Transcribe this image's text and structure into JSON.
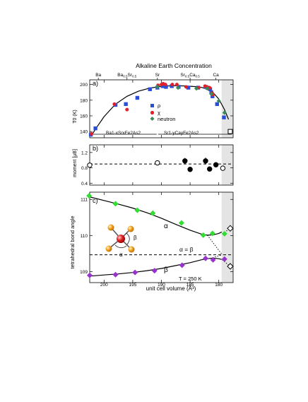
{
  "figure": {
    "title": "Alkaline Earth Concentration",
    "top_labels": [
      "Ba",
      "Ba0.5Sr0.5",
      "Sr",
      "Sr0.5Ca0.5",
      "Ca"
    ],
    "top_label_x": [
      201,
      196,
      190.7,
      185,
      180.5
    ],
    "x_axis": {
      "label": "unit cell volume (Å³)",
      "reversed": true,
      "lim": [
        202.5,
        177.5
      ],
      "ticks": [
        200,
        195,
        190,
        185,
        180
      ]
    },
    "shaded_region": [
      179.5,
      177.5
    ],
    "colors": {
      "rho": "#2a4fd6",
      "chi": "#e0202a",
      "neutron": "#3a8a5a",
      "alpha": "#33dd33",
      "beta": "#9932cc",
      "moment": "#000000"
    }
  },
  "chart_data": [
    {
      "panel": "a)",
      "type": "scatter",
      "ylabel": "T0 (K)",
      "ylim": [
        132,
        206
      ],
      "yticks": [
        140,
        160,
        180,
        200
      ],
      "region_labels": [
        "Ba1-xSrxFe2As2",
        "Sr1-yCayFe2As2"
      ],
      "legend": {
        "position": "center",
        "entries": [
          "ρ",
          "χ",
          "neutron"
        ]
      },
      "series": [
        {
          "name": "ρ",
          "marker": "square",
          "x": [
            202.3,
            201.5,
            198.0,
            196.2,
            194.2,
            192.0,
            190.7,
            189.8,
            189.5,
            189.2,
            188.2,
            187.0,
            185.3,
            183.6,
            182.3,
            182.0,
            181.5,
            181.3,
            181.1,
            180.3,
            179.1
          ],
          "y": [
            136,
            144,
            174,
            175,
            183,
            194,
            196,
            198,
            198,
            197,
            198,
            197,
            196,
            196,
            197,
            196,
            194,
            190,
            185,
            175,
            158
          ]
        },
        {
          "name": "χ",
          "marker": "circle",
          "x": [
            202.2,
            198.2,
            196.0,
            190.6,
            190.0,
            189.7,
            189.3,
            188.1,
            187.3,
            185.7,
            183.5,
            182.4,
            182.1,
            181.6,
            181.2,
            181.0
          ],
          "y": [
            137,
            175,
            168,
            199,
            200,
            201,
            200,
            200,
            200,
            197,
            196,
            198,
            197,
            196,
            189,
            187
          ]
        },
        {
          "name": "neutron",
          "marker": "diamond",
          "x": [
            190.7,
            187.1,
            183.9,
            182.0,
            181.3,
            180.0,
            179.0
          ],
          "y": [
            197,
            196,
            195,
            195,
            188,
            179,
            164
          ]
        }
      ],
      "fit": {
        "x": [
          202.3,
          201.5,
          200,
          198,
          196,
          194,
          192,
          190,
          188,
          186,
          184,
          183,
          182,
          181,
          180,
          179,
          178.3
        ],
        "y": [
          133.5,
          143,
          159,
          175,
          185,
          191.5,
          195.5,
          197.8,
          198.5,
          198.2,
          197.3,
          196.3,
          194.3,
          189.8,
          181.5,
          168,
          155.5
        ]
      },
      "open_markers": [
        {
          "x": 178.0,
          "y": 140,
          "marker": "square"
        }
      ]
    },
    {
      "panel": "b)",
      "type": "scatter",
      "ylabel": "moment [μB]",
      "ylim": [
        0.35,
        1.4
      ],
      "yticks": [
        0.4,
        0.8,
        1.2
      ],
      "reference_line": 0.9,
      "series": [
        {
          "name": "",
          "marker": "circle",
          "filled": true,
          "x": [
            185.9,
            185.0,
            182.3,
            181.6,
            180.5
          ],
          "y": [
            0.98,
            0.76,
            0.98,
            0.77,
            0.88
          ],
          "yerr": [
            0.08,
            0.06,
            0.09,
            0.06,
            0.05
          ]
        },
        {
          "name": "",
          "marker": "circle",
          "filled": false,
          "x": [
            202.5,
            190.7,
            179.3
          ],
          "y": [
            0.87,
            0.93,
            0.79
          ]
        }
      ]
    },
    {
      "panel": "c)",
      "type": "scatter",
      "ylabel": "tetrahedral bond angle",
      "ylim": [
        108.7,
        111.2
      ],
      "yticks": [
        109,
        110,
        111
      ],
      "reference_line": 109.47,
      "annotations": [
        "α",
        "β",
        "α = β",
        "T = 250 K"
      ],
      "series": [
        {
          "name": "α",
          "marker": "diamond",
          "x": [
            202.6,
            198.0,
            194.2,
            191.5,
            186.5,
            182.7,
            181.1,
            179.0
          ],
          "y": [
            111.1,
            110.88,
            110.7,
            110.62,
            110.35,
            110.01,
            110.06,
            110.05
          ]
        },
        {
          "name": "β",
          "marker": "diamond",
          "x": [
            202.5,
            198.0,
            194.6,
            191.2,
            186.4,
            182.3,
            181.0,
            179.0
          ],
          "y": [
            108.9,
            108.92,
            108.98,
            109.03,
            109.18,
            109.37,
            109.33,
            109.35
          ]
        }
      ],
      "fits": [
        {
          "x": [
            202.5,
            200,
            197.5,
            195,
            192.5,
            190,
            187.5,
            185,
            183,
            182,
            181,
            180,
            179.5
          ],
          "y": [
            111.07,
            110.97,
            110.87,
            110.76,
            110.63,
            110.48,
            110.31,
            110.15,
            110.04,
            110.01,
            110.02,
            110.06,
            110.1
          ]
        },
        {
          "x": [
            202.5,
            200,
            197.5,
            195,
            192.5,
            190,
            187.5,
            185,
            183,
            182,
            181,
            180,
            179.5
          ],
          "y": [
            108.88,
            108.91,
            108.94,
            108.98,
            109.03,
            109.09,
            109.17,
            109.25,
            109.33,
            109.36,
            109.38,
            109.36,
            109.34
          ]
        }
      ],
      "extrapolations": [
        {
          "x": [
            182.0,
            179.4
          ],
          "y": [
            110.01,
            109.47
          ]
        },
        {
          "x": [
            181.5,
            179.4
          ],
          "y": [
            109.37,
            109.47
          ]
        },
        {
          "x": [
            179.4,
            178.0
          ],
          "y": [
            110.05,
            110.2
          ]
        },
        {
          "x": [
            179.4,
            178.0
          ],
          "y": [
            109.33,
            109.15
          ]
        }
      ],
      "open_markers": [
        {
          "x": 178.0,
          "y": 110.2
        },
        {
          "x": 178.0,
          "y": 109.15
        }
      ]
    }
  ]
}
